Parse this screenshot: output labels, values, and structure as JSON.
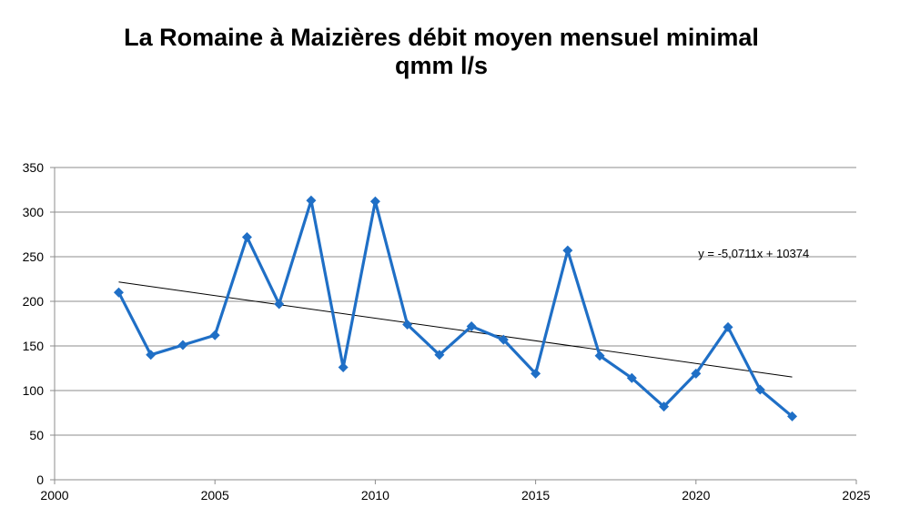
{
  "title_line1": "La Romaine à Maizières débit moyen mensuel minimal",
  "title_line2": "qmm l/s",
  "chart_data": {
    "type": "line",
    "title": "La Romaine à Maizières débit moyen mensuel minimal qmm l/s",
    "xlabel": "",
    "ylabel": "",
    "xlim": [
      2000,
      2025
    ],
    "ylim": [
      0,
      350
    ],
    "x_ticks": [
      2000,
      2005,
      2010,
      2015,
      2020,
      2025
    ],
    "y_ticks": [
      0,
      50,
      100,
      150,
      200,
      250,
      300,
      350
    ],
    "grid": "horizontal",
    "series": [
      {
        "x": [
          2002,
          2003,
          2004,
          2005,
          2006,
          2007,
          2008,
          2009,
          2010,
          2011,
          2012,
          2013,
          2014,
          2015,
          2016,
          2017,
          2018,
          2019,
          2020,
          2021,
          2022,
          2023
        ],
        "values": [
          210,
          140,
          151,
          162,
          272,
          197,
          313,
          126,
          312,
          174,
          140,
          172,
          157,
          119,
          257,
          139,
          114,
          82,
          119,
          171,
          101,
          71
        ],
        "color": "#1f6fc6"
      }
    ],
    "trendline": {
      "equation": "y = -5,0711x + 10374",
      "slope": -5.0711,
      "intercept": 10374,
      "x_range": [
        2002,
        2023
      ],
      "color": "#000000"
    }
  }
}
